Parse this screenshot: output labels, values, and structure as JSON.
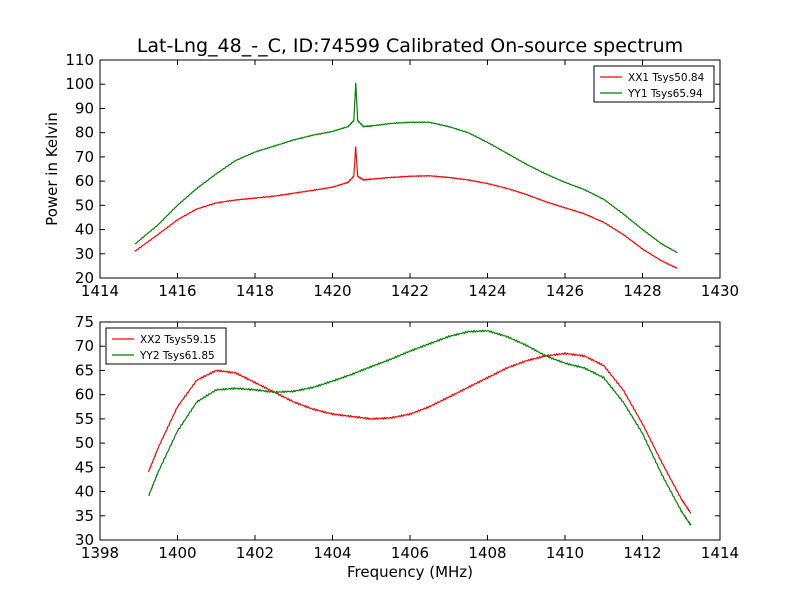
{
  "chart_data": [
    {
      "type": "line",
      "title": "Lat-Lng_48_-_C, ID:74599 Calibrated On-source spectrum",
      "xlabel": "",
      "ylabel": "Power in Kelvin",
      "xlim": [
        1414,
        1430
      ],
      "ylim": [
        20,
        110
      ],
      "xticks": [
        1414,
        1416,
        1418,
        1420,
        1422,
        1424,
        1426,
        1428,
        1430
      ],
      "yticks": [
        20,
        30,
        40,
        50,
        60,
        70,
        80,
        90,
        100,
        110
      ],
      "legend_position": "top-right",
      "series": [
        {
          "name": "XX1 Tsys50.84",
          "color": "#ff0000",
          "x": [
            1414.9,
            1415.5,
            1416.0,
            1416.5,
            1417.0,
            1417.5,
            1418.0,
            1418.5,
            1419.0,
            1419.5,
            1420.0,
            1420.4,
            1420.55,
            1420.6,
            1420.65,
            1420.8,
            1421.0,
            1421.5,
            1422.0,
            1422.5,
            1423.0,
            1423.5,
            1424.0,
            1424.5,
            1425.0,
            1425.5,
            1426.0,
            1426.5,
            1427.0,
            1427.5,
            1428.0,
            1428.5,
            1428.9
          ],
          "y": [
            31,
            38,
            44,
            48.5,
            51,
            52.2,
            53,
            53.8,
            55,
            56.2,
            57.5,
            59.5,
            62,
            74,
            62,
            60.5,
            60.8,
            61.5,
            62,
            62.2,
            61.5,
            60.5,
            59,
            57,
            54.5,
            51.5,
            49,
            46.5,
            43,
            38,
            32,
            27,
            24
          ]
        },
        {
          "name": "YY1 Tsys65.94",
          "color": "#008000",
          "x": [
            1414.9,
            1415.5,
            1416.0,
            1416.5,
            1417.0,
            1417.5,
            1418.0,
            1418.5,
            1419.0,
            1419.5,
            1420.0,
            1420.4,
            1420.55,
            1420.6,
            1420.65,
            1420.8,
            1421.0,
            1421.5,
            1422.0,
            1422.5,
            1423.0,
            1423.5,
            1424.0,
            1424.5,
            1425.0,
            1425.5,
            1426.0,
            1426.5,
            1427.0,
            1427.5,
            1428.0,
            1428.5,
            1428.9
          ],
          "y": [
            34,
            42,
            50,
            57,
            63,
            68.5,
            72,
            74.5,
            77,
            79,
            80.5,
            82.5,
            85,
            100.5,
            85,
            82.5,
            82.8,
            83.8,
            84.3,
            84.3,
            82.5,
            80,
            76,
            71.5,
            67,
            63,
            59.5,
            56.5,
            52.5,
            46.5,
            40,
            34,
            30.5
          ]
        }
      ]
    },
    {
      "type": "line",
      "title": "",
      "xlabel": "Frequency (MHz)",
      "ylabel": "",
      "xlim": [
        1398,
        1414
      ],
      "ylim": [
        30,
        75
      ],
      "xticks": [
        1398,
        1400,
        1402,
        1404,
        1406,
        1408,
        1410,
        1412,
        1414
      ],
      "yticks": [
        30,
        35,
        40,
        45,
        50,
        55,
        60,
        65,
        70,
        75
      ],
      "legend_position": "top-left",
      "series": [
        {
          "name": "XX2 Tsys59.15",
          "color": "#ff0000",
          "x": [
            1399.25,
            1399.5,
            1400.0,
            1400.5,
            1401.0,
            1401.5,
            1402.0,
            1402.5,
            1403.0,
            1403.5,
            1404.0,
            1404.5,
            1405.0,
            1405.5,
            1406.0,
            1406.5,
            1407.0,
            1407.5,
            1408.0,
            1408.5,
            1409.0,
            1409.5,
            1410.0,
            1410.5,
            1411.0,
            1411.5,
            1412.0,
            1412.5,
            1413.0,
            1413.25
          ],
          "y": [
            44,
            49,
            57.5,
            63,
            65,
            64.5,
            62.5,
            60.5,
            58.5,
            57,
            56,
            55.5,
            55,
            55.2,
            56,
            57.5,
            59.5,
            61.5,
            63.5,
            65.5,
            67,
            68,
            68.5,
            68,
            66,
            61,
            54,
            46,
            38.5,
            35.5
          ]
        },
        {
          "name": "YY2 Tsys61.85",
          "color": "#008000",
          "x": [
            1399.25,
            1399.5,
            1400.0,
            1400.5,
            1401.0,
            1401.5,
            1402.0,
            1402.5,
            1403.0,
            1403.5,
            1404.0,
            1404.5,
            1405.0,
            1405.5,
            1406.0,
            1406.5,
            1407.0,
            1407.5,
            1408.0,
            1408.5,
            1409.0,
            1409.5,
            1410.0,
            1410.5,
            1411.0,
            1411.5,
            1412.0,
            1412.5,
            1413.0,
            1413.25
          ],
          "y": [
            39,
            44,
            52.5,
            58.5,
            61,
            61.3,
            61,
            60.5,
            60.7,
            61.5,
            62.8,
            64.2,
            65.8,
            67.3,
            69,
            70.5,
            72,
            73,
            73.2,
            72,
            70.2,
            68,
            66.5,
            65.5,
            63.5,
            58.5,
            52,
            43.5,
            36,
            33
          ]
        }
      ]
    }
  ]
}
